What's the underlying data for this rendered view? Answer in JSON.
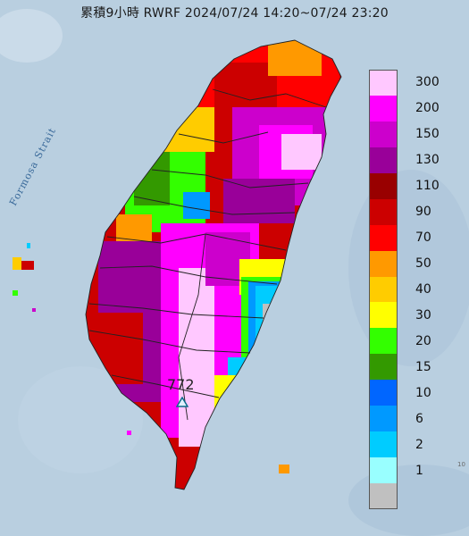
{
  "title": "累積9小時 RWRF 2024/07/24 14:20~07/24 23:20",
  "strait_label": "Formosa Strait",
  "marker": {
    "label": "772",
    "icon": "triangle-marker-icon"
  },
  "edge_label": "10",
  "legend": [
    {
      "label": "300",
      "color": "#ffc8ff"
    },
    {
      "label": "200",
      "color": "#ff00ff"
    },
    {
      "label": "150",
      "color": "#cc00cc"
    },
    {
      "label": "130",
      "color": "#990099"
    },
    {
      "label": "110",
      "color": "#990000"
    },
    {
      "label": "90",
      "color": "#cc0000"
    },
    {
      "label": "70",
      "color": "#ff0000"
    },
    {
      "label": "50",
      "color": "#ff9900"
    },
    {
      "label": "40",
      "color": "#ffcc00"
    },
    {
      "label": "30",
      "color": "#ffff00"
    },
    {
      "label": "20",
      "color": "#33ff00"
    },
    {
      "label": "15",
      "color": "#339900"
    },
    {
      "label": "10",
      "color": "#0066ff"
    },
    {
      "label": "6",
      "color": "#0099ff"
    },
    {
      "label": "2",
      "color": "#00ccff"
    },
    {
      "label": "1",
      "color": "#99ffff"
    },
    {
      "label": "",
      "color": "#c0c0c0"
    }
  ]
}
